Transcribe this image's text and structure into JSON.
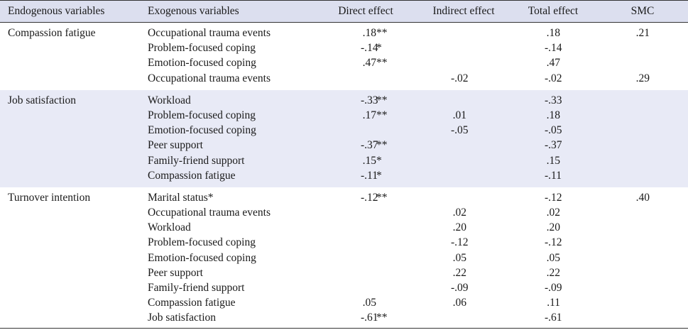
{
  "headers": {
    "endogenous": "Endogenous variables",
    "exogenous": "Exogenous variables",
    "direct": "Direct effect",
    "indirect": "Indirect effect",
    "total": "Total effect",
    "smc": "SMC"
  },
  "groups": [
    {
      "endogenous": "Compassion fatigue",
      "shaded": false,
      "rows": [
        {
          "exo": "Occupational trauma events",
          "direct": ".18",
          "direct_sig": "**",
          "indirect": "",
          "total": ".18",
          "smc": ".21"
        },
        {
          "exo": "Problem-focused coping",
          "direct": "-.14",
          "direct_sig": "*",
          "indirect": "",
          "total": "-.14",
          "smc": ""
        },
        {
          "exo": "Emotion-focused coping",
          "direct": ".47",
          "direct_sig": "**",
          "indirect": "",
          "total": ".47",
          "smc": ""
        },
        {
          "exo": "Occupational trauma events",
          "direct": "",
          "direct_sig": "",
          "indirect": "-.02",
          "total": "-.02",
          "smc": ".29"
        }
      ]
    },
    {
      "endogenous": "Job satisfaction",
      "shaded": true,
      "rows": [
        {
          "exo": "Workload",
          "direct": "-.33",
          "direct_sig": "**",
          "indirect": "",
          "total": "-.33",
          "smc": ""
        },
        {
          "exo": "Problem-focused coping",
          "direct": ".17",
          "direct_sig": "**",
          "indirect": ".01",
          "total": ".18",
          "smc": ""
        },
        {
          "exo": "Emotion-focused coping",
          "direct": "",
          "direct_sig": "",
          "indirect": "-.05",
          "total": "-.05",
          "smc": ""
        },
        {
          "exo": "Peer support",
          "direct": "-.37",
          "direct_sig": "**",
          "indirect": "",
          "total": "-.37",
          "smc": ""
        },
        {
          "exo": "Family-friend support",
          "direct": ".15",
          "direct_sig": "*",
          "indirect": "",
          "total": ".15",
          "smc": ""
        },
        {
          "exo": "Compassion fatigue",
          "direct": "-.11",
          "direct_sig": "*",
          "indirect": "",
          "total": "-.11",
          "smc": ""
        }
      ]
    },
    {
      "endogenous": "Turnover intention",
      "shaded": false,
      "rows": [
        {
          "exo": "Marital status*",
          "direct": "-.12",
          "direct_sig": "**",
          "indirect": "",
          "total": "-.12",
          "smc": ".40"
        },
        {
          "exo": "Occupational trauma events",
          "direct": "",
          "direct_sig": "",
          "indirect": ".02",
          "total": ".02",
          "smc": ""
        },
        {
          "exo": "Workload",
          "direct": "",
          "direct_sig": "",
          "indirect": ".20",
          "total": ".20",
          "smc": ""
        },
        {
          "exo": "Problem-focused coping",
          "direct": "",
          "direct_sig": "",
          "indirect": "-.12",
          "total": "-.12",
          "smc": ""
        },
        {
          "exo": "Emotion-focused coping",
          "direct": "",
          "direct_sig": "",
          "indirect": ".05",
          "total": ".05",
          "smc": ""
        },
        {
          "exo": "Peer support",
          "direct": "",
          "direct_sig": "",
          "indirect": ".22",
          "total": ".22",
          "smc": ""
        },
        {
          "exo": "Family-friend support",
          "direct": "",
          "direct_sig": "",
          "indirect": "-.09",
          "total": "-.09",
          "smc": ""
        },
        {
          "exo": "Compassion fatigue",
          "direct": ".05",
          "direct_sig": "",
          "indirect": ".06",
          "total": ".11",
          "smc": ""
        },
        {
          "exo": "Job satisfaction",
          "direct": "-.61",
          "direct_sig": "**",
          "indirect": "",
          "total": "-.61",
          "smc": ""
        }
      ]
    }
  ],
  "colors": {
    "header_bg": "#dcdfef",
    "shaded_bg": "#e8eaf6",
    "rule": "#333333"
  }
}
